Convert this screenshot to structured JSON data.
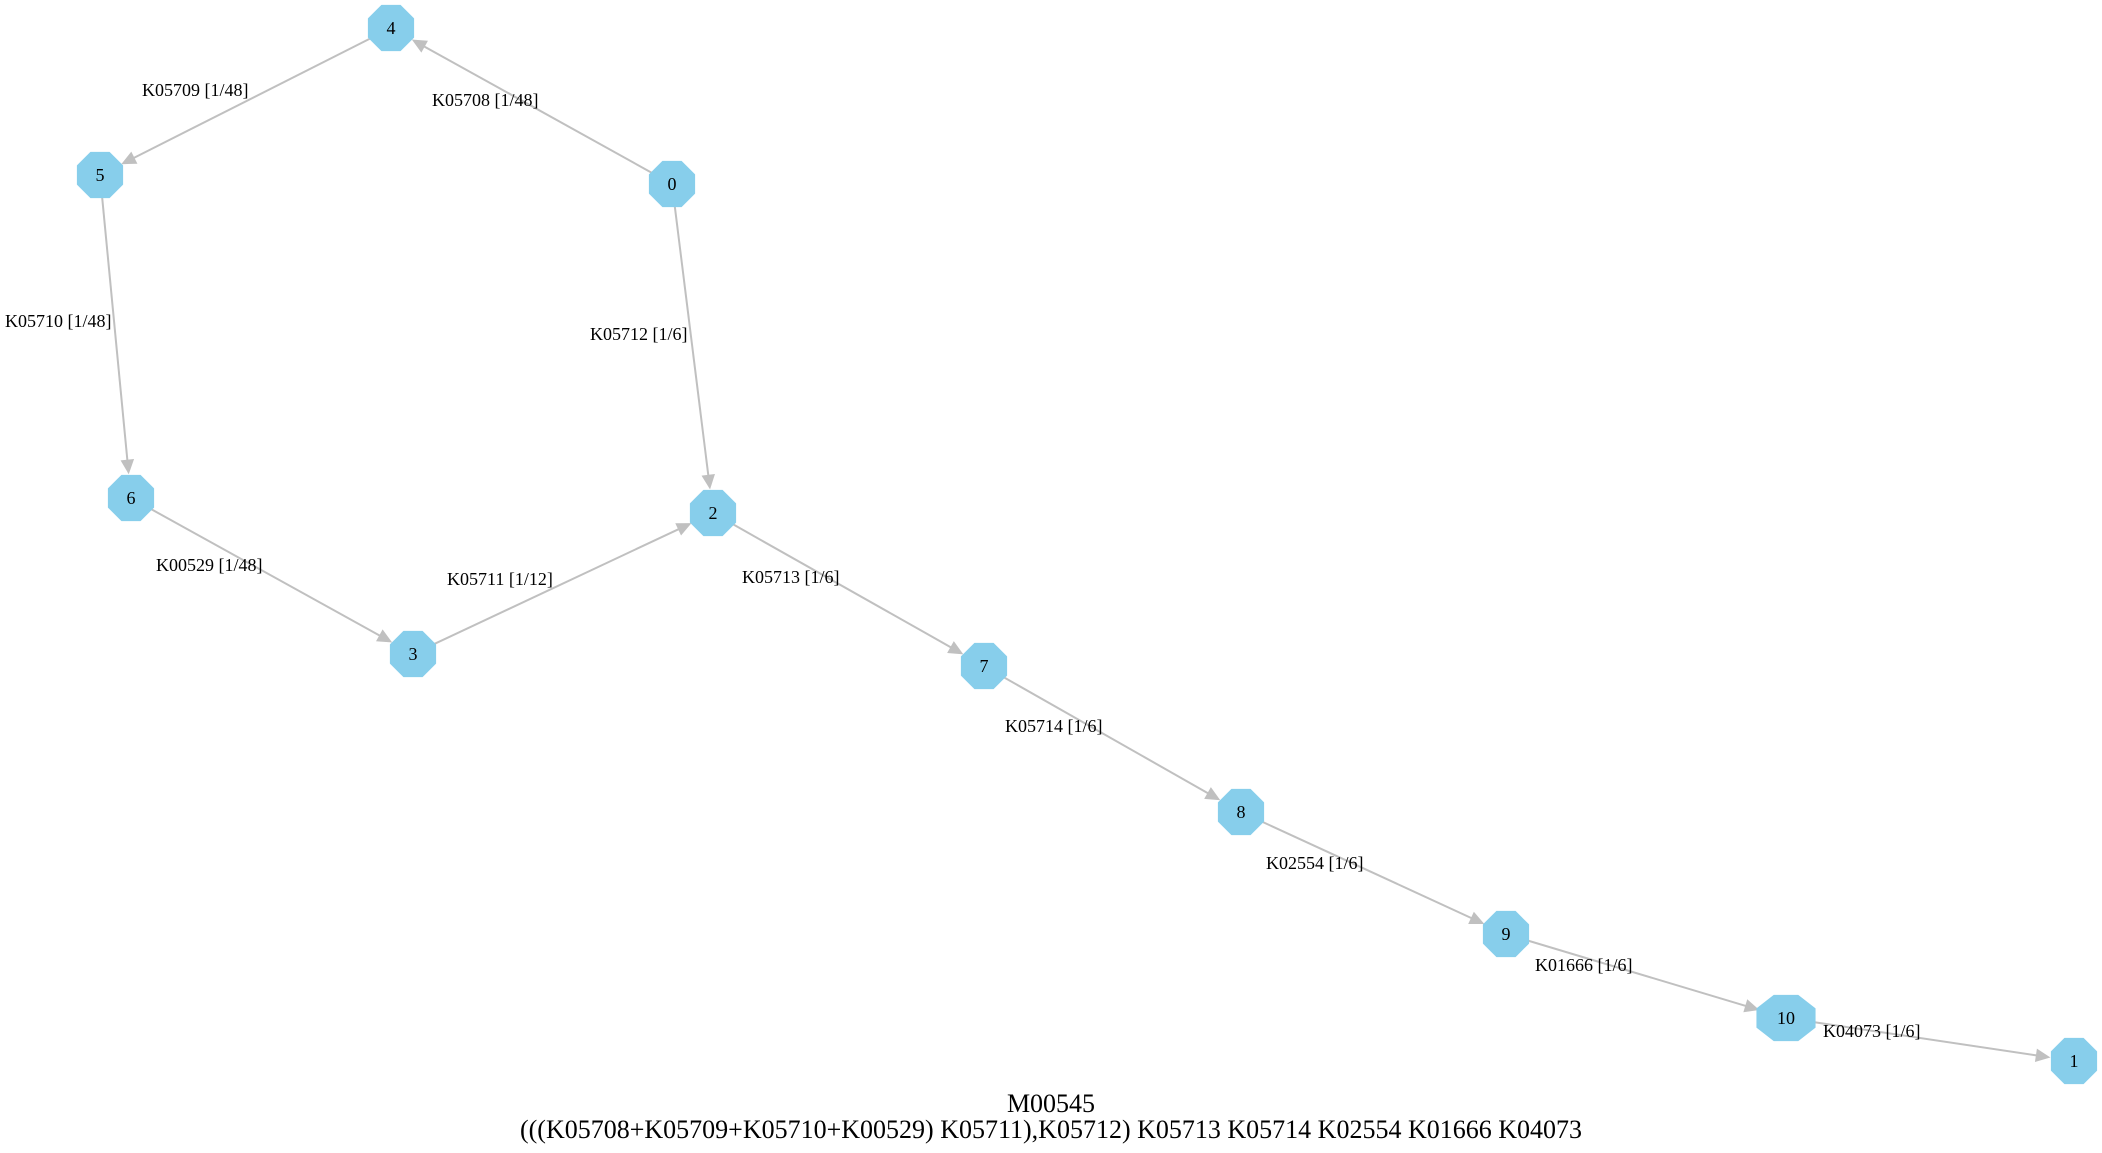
{
  "node_color": "#87ceeb",
  "edge_color": "#c0c0c0",
  "nodes": [
    {
      "id": "0",
      "label": "0"
    },
    {
      "id": "1",
      "label": "1"
    },
    {
      "id": "2",
      "label": "2"
    },
    {
      "id": "3",
      "label": "3"
    },
    {
      "id": "4",
      "label": "4"
    },
    {
      "id": "5",
      "label": "5"
    },
    {
      "id": "6",
      "label": "6"
    },
    {
      "id": "7",
      "label": "7"
    },
    {
      "id": "8",
      "label": "8"
    },
    {
      "id": "9",
      "label": "9"
    },
    {
      "id": "10",
      "label": "10"
    }
  ],
  "edges": [
    {
      "from": "0",
      "to": "4",
      "label": "K05708 [1/48]"
    },
    {
      "from": "4",
      "to": "5",
      "label": "K05709 [1/48]"
    },
    {
      "from": "5",
      "to": "6",
      "label": "K05710 [1/48]"
    },
    {
      "from": "6",
      "to": "3",
      "label": "K00529 [1/48]"
    },
    {
      "from": "3",
      "to": "2",
      "label": "K05711 [1/12]"
    },
    {
      "from": "0",
      "to": "2",
      "label": "K05712 [1/6]"
    },
    {
      "from": "2",
      "to": "7",
      "label": "K05713 [1/6]"
    },
    {
      "from": "7",
      "to": "8",
      "label": "K05714 [1/6]"
    },
    {
      "from": "8",
      "to": "9",
      "label": "K02554 [1/6]"
    },
    {
      "from": "9",
      "to": "10",
      "label": "K01666 [1/6]"
    },
    {
      "from": "10",
      "to": "1",
      "label": "K04073 [1/6]"
    }
  ],
  "caption": {
    "title": "M00545",
    "formula": "(((K05708+K05709+K05710+K00529) K05711),K05712) K05713 K05714 K02554 K01666 K04073"
  }
}
